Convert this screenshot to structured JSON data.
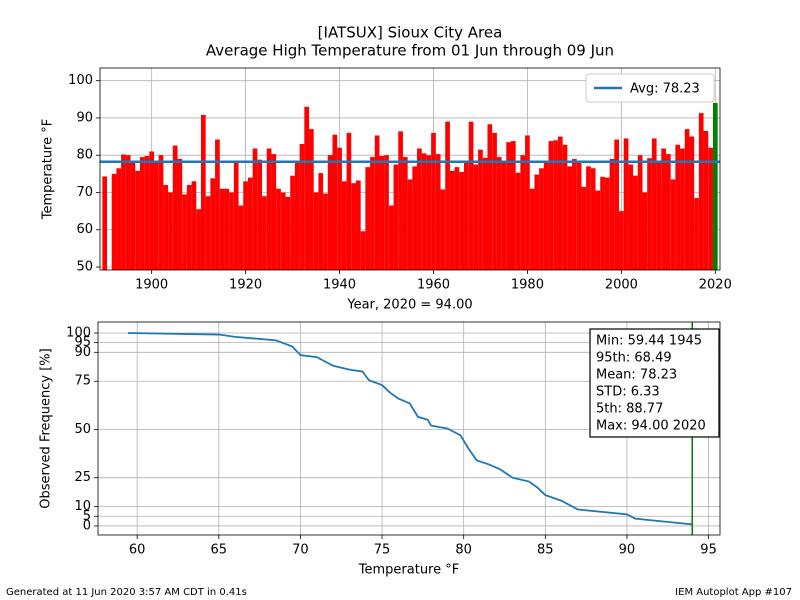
{
  "chart_data": [
    {
      "type": "bar",
      "title": "[IATSUX] Sioux City Area",
      "subtitle": "Average High Temperature from 01 Jun through 09 Jun",
      "ylabel": "Temperature $^\\circ$F",
      "xlabel": "Year, 2020 = 94.00",
      "x": [
        1890,
        1891,
        1892,
        1893,
        1894,
        1895,
        1896,
        1897,
        1898,
        1899,
        1900,
        1901,
        1902,
        1903,
        1904,
        1905,
        1906,
        1907,
        1908,
        1909,
        1910,
        1911,
        1912,
        1913,
        1914,
        1915,
        1916,
        1917,
        1918,
        1919,
        1920,
        1921,
        1922,
        1923,
        1924,
        1925,
        1926,
        1927,
        1928,
        1929,
        1930,
        1931,
        1932,
        1933,
        1934,
        1935,
        1936,
        1937,
        1938,
        1939,
        1940,
        1941,
        1942,
        1943,
        1944,
        1945,
        1946,
        1947,
        1948,
        1949,
        1950,
        1951,
        1952,
        1953,
        1954,
        1955,
        1956,
        1957,
        1958,
        1959,
        1960,
        1961,
        1962,
        1963,
        1964,
        1965,
        1966,
        1967,
        1968,
        1969,
        1970,
        1971,
        1972,
        1973,
        1974,
        1975,
        1976,
        1977,
        1978,
        1979,
        1980,
        1981,
        1982,
        1983,
        1984,
        1985,
        1986,
        1987,
        1988,
        1989,
        1990,
        1991,
        1992,
        1993,
        1994,
        1995,
        1996,
        1997,
        1998,
        1999,
        2000,
        2001,
        2002,
        2003,
        2004,
        2005,
        2006,
        2007,
        2008,
        2009,
        2010,
        2011,
        2012,
        2013,
        2014,
        2015,
        2016,
        2017,
        2018,
        2019
      ],
      "values": [
        74.3,
        null,
        75,
        76.5,
        80.2,
        80,
        78.5,
        75.8,
        79.5,
        79.8,
        81,
        78.4,
        80,
        72,
        70,
        82.6,
        79,
        69.5,
        72,
        73,
        65.5,
        90.8,
        69,
        73.8,
        84.2,
        71,
        71,
        70,
        78,
        66.5,
        73,
        74,
        81.8,
        78.8,
        69,
        81.8,
        80.3,
        71,
        70,
        68.8,
        74.5,
        78,
        83,
        93,
        87,
        70,
        75.2,
        69.7,
        80,
        85.5,
        82,
        73,
        86,
        72.5,
        73.2,
        59.6,
        76.8,
        79.5,
        85.3,
        79.8,
        80,
        66.5,
        77.5,
        86.4,
        79.5,
        73.5,
        77,
        81.8,
        80.5,
        80,
        86,
        80.3,
        70.8,
        89,
        75.8,
        76.8,
        75.5,
        78,
        89,
        77.5,
        81.5,
        79.3,
        88.3,
        86,
        79.5,
        78,
        83.5,
        83.8,
        75.3,
        80,
        85.3,
        71,
        74.8,
        76.5,
        78,
        83.8,
        84,
        85,
        82.8,
        77,
        79,
        78.5,
        71.5,
        77,
        76.5,
        70.5,
        74.2,
        74,
        79,
        84.2,
        65,
        84.5,
        77.5,
        74.5,
        80,
        70,
        79.2,
        84.5,
        78.5,
        81.8,
        80.3,
        73.5,
        82.8,
        81.8,
        87,
        85,
        68.5,
        91.3,
        86.5,
        82
      ],
      "color": "red",
      "current": {
        "x": 2020,
        "value": 94,
        "color": "green"
      },
      "average": {
        "name": "Avg: 78.23",
        "value": 78.23,
        "color": "#1f77b4"
      },
      "legend": "upper right",
      "xlim": [
        1889,
        2021
      ],
      "ylim": [
        49.2,
        103.4
      ],
      "xticks": [
        1900,
        1920,
        1940,
        1960,
        1980,
        2000,
        2020
      ],
      "yticks": [
        50,
        60,
        70,
        80,
        90,
        100
      ],
      "grid": true
    },
    {
      "type": "line",
      "ylabel": "Observed Frequency [%]",
      "xlabel": "Temperature $^\\circ$F",
      "x": [
        59.44,
        65,
        66,
        68.5,
        69.5,
        70,
        71,
        72,
        73,
        73.8,
        74.2,
        75,
        75.5,
        76,
        76.7,
        77.2,
        77.8,
        78,
        79,
        79.8,
        80.3,
        80.8,
        81.5,
        82.2,
        83,
        84,
        84.5,
        85,
        86,
        87,
        90,
        90.5,
        92,
        94
      ],
      "values": [
        100,
        99.2,
        98,
        96.2,
        93,
        88.5,
        87.5,
        83,
        81,
        80,
        75.5,
        73,
        69,
        66,
        63.5,
        56.5,
        55,
        52,
        50.5,
        47,
        40,
        34,
        32,
        29.5,
        25,
        23,
        20,
        16,
        13,
        8.5,
        6,
        3.8,
        2.5,
        0.8
      ],
      "color": "#1f77b4",
      "marker_x": 94,
      "marker_color": "green",
      "stats": [
        "Min: 59.44 1945",
        "95th: 68.49",
        "Mean: 78.23",
        "STD: 6.33",
        "5th: 88.77",
        "Max: 94.00 2020"
      ],
      "xlim": [
        57.6,
        95.7
      ],
      "ylim": [
        -4.7,
        105.7
      ],
      "xticks": [
        60,
        65,
        70,
        75,
        80,
        85,
        90,
        95
      ],
      "yticks": [
        0,
        5,
        10,
        25,
        50,
        75,
        90,
        95,
        100
      ],
      "grid": true
    }
  ],
  "footer": {
    "left": "Generated at 11 Jun 2020 3:57 AM CDT in 0.41s",
    "right": "IEM Autoplot App #107"
  }
}
